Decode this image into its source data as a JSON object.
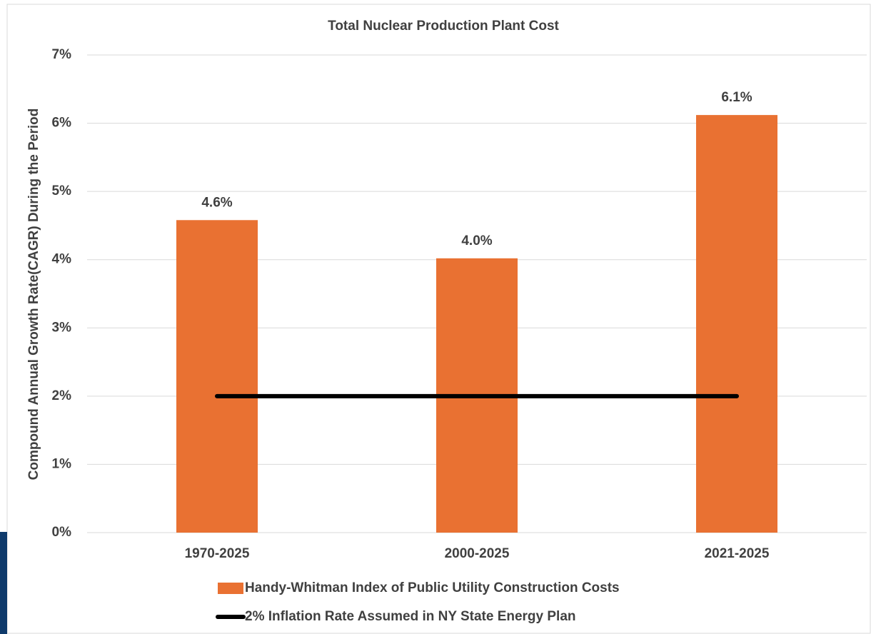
{
  "chart_data": {
    "type": "bar",
    "title": "Total Nuclear Production Plant Cost",
    "y_label": "Compound Annual Growth Rate(CAGR) During the Period",
    "categories": [
      "1970-2025",
      "2000-2025",
      "2021-2025"
    ],
    "series": [
      {
        "name": "Handy-Whitman Index of Public Utility Construction Costs",
        "color": "#e97132",
        "type": "bar",
        "values": [
          4.58,
          4.02,
          6.12
        ],
        "value_labels": [
          "4.6%",
          "4.0%",
          "6.1%"
        ]
      },
      {
        "name": "2% Inflation Rate Assumed in NY State Energy Plan",
        "color": "#000000",
        "type": "line",
        "values": [
          2,
          2,
          2
        ]
      }
    ],
    "ylim": [
      0,
      7
    ],
    "yticks": [
      {
        "value": 0,
        "label": "0%"
      },
      {
        "value": 1,
        "label": "1%"
      },
      {
        "value": 2,
        "label": "2%"
      },
      {
        "value": 3,
        "label": "3%"
      },
      {
        "value": 4,
        "label": "4%"
      },
      {
        "value": 5,
        "label": "5%"
      },
      {
        "value": 6,
        "label": "6%"
      },
      {
        "value": 7,
        "label": "7%"
      }
    ],
    "grid": true,
    "legend": "bottom"
  }
}
